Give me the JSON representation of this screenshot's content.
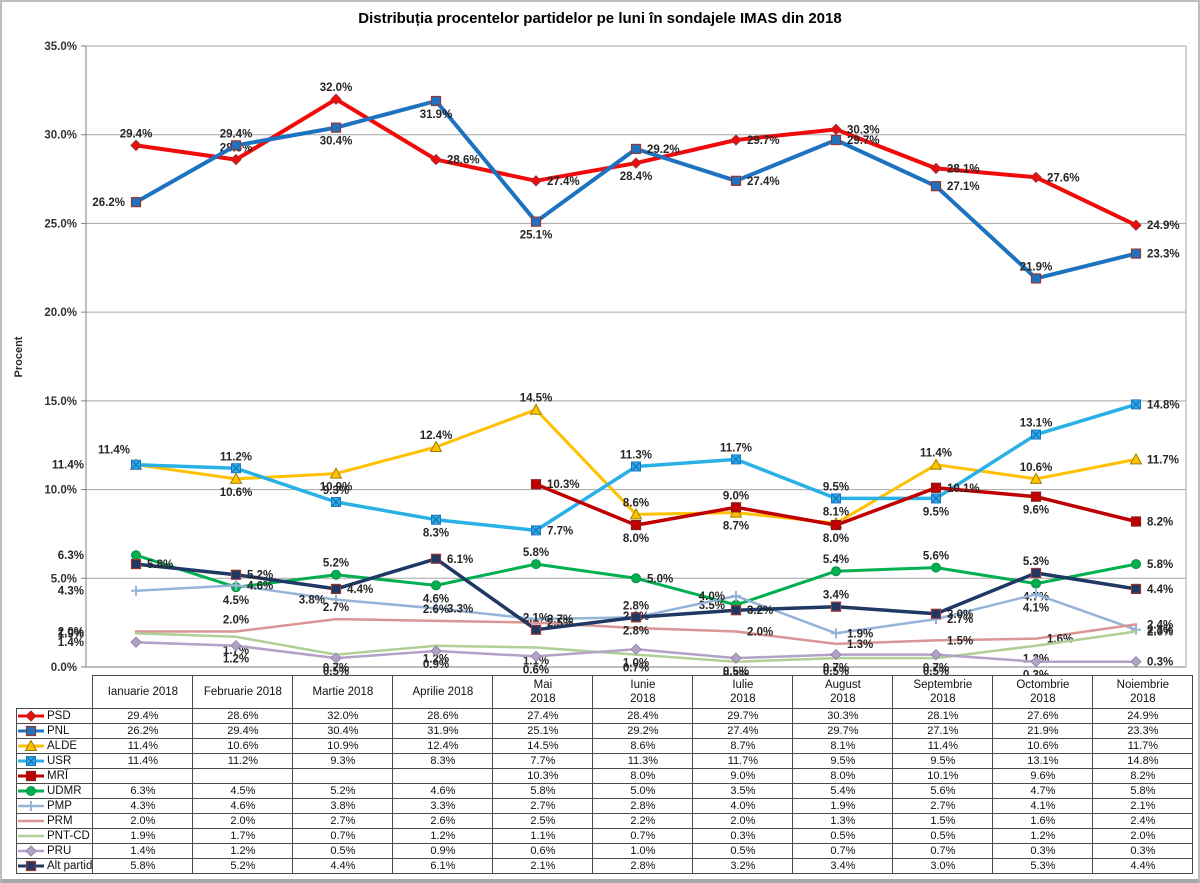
{
  "chart_data": {
    "type": "line",
    "title": "Distribuția procentelor partidelor pe luni în sondajele IMAS din 2018",
    "xlabel": "",
    "ylabel": "Procent",
    "ylim": [
      0,
      35
    ],
    "ytick_step": 5,
    "ytick_labels": [
      "0.0%",
      "5.0%",
      "10.0%",
      "15.0%",
      "20.0%",
      "25.0%",
      "30.0%",
      "35.0%"
    ],
    "grid": "horizontal-only",
    "legend_position": "table-left-column",
    "value_suffix": "%",
    "categories": [
      "Ianuarie 2018",
      "Februarie 2018",
      "Martie 2018",
      "Aprilie 2018",
      "Mai 2018",
      "Iunie 2018",
      "Iulie 2018",
      "August 2018",
      "Septembrie 2018",
      "Octombrie 2018",
      "Noiembrie 2018"
    ],
    "categories_display": [
      "Ianuarie 2018",
      "Februarie 2018",
      "Martie 2018",
      "Aprilie 2018",
      "Mai\n2018",
      "Iunie\n2018",
      "Iulie\n2018",
      "August\n2018",
      "Septembrie\n2018",
      "Octombrie\n2018",
      "Noiembrie\n2018"
    ],
    "series": [
      {
        "name": "PSD",
        "color": "#f00a0a",
        "marker": "diamond",
        "values": [
          29.4,
          28.6,
          32.0,
          28.6,
          27.4,
          28.4,
          29.7,
          30.3,
          28.1,
          27.6,
          24.9
        ]
      },
      {
        "name": "PNL",
        "color": "#1d73c0",
        "marker": "square",
        "values": [
          26.2,
          29.4,
          30.4,
          31.9,
          25.1,
          29.2,
          27.4,
          29.7,
          27.1,
          21.9,
          23.3
        ]
      },
      {
        "name": "ALDE",
        "color": "#ffc000",
        "marker": "triangle",
        "values": [
          11.4,
          10.6,
          10.9,
          12.4,
          14.5,
          8.6,
          8.7,
          8.1,
          11.4,
          10.6,
          11.7
        ]
      },
      {
        "name": "USR",
        "color": "#29b1e6",
        "marker": "xsquare",
        "values": [
          11.4,
          11.2,
          9.3,
          8.3,
          7.7,
          11.3,
          11.7,
          9.5,
          9.5,
          13.1,
          14.8
        ]
      },
      {
        "name": "MRÎ",
        "color": "#c00000",
        "marker": "square",
        "values": [
          null,
          null,
          null,
          null,
          10.3,
          8.0,
          9.0,
          8.0,
          10.1,
          9.6,
          8.2
        ]
      },
      {
        "name": "UDMR",
        "color": "#00b050",
        "marker": "circle",
        "values": [
          6.3,
          4.5,
          5.2,
          4.6,
          5.8,
          5.0,
          3.5,
          5.4,
          5.6,
          4.7,
          5.8
        ]
      },
      {
        "name": "PMP",
        "color": "#95b3d7",
        "marker": "plus",
        "values": [
          4.3,
          4.6,
          3.8,
          3.3,
          2.7,
          2.8,
          4.0,
          1.9,
          2.7,
          4.1,
          2.1
        ]
      },
      {
        "name": "PRM",
        "color": "#d99694",
        "marker": "none",
        "values": [
          2.0,
          2.0,
          2.7,
          2.6,
          2.5,
          2.2,
          2.0,
          1.3,
          1.5,
          1.6,
          2.4
        ]
      },
      {
        "name": "PNT-CD",
        "color": "#aecf96",
        "marker": "none",
        "values": [
          1.9,
          1.7,
          0.7,
          1.2,
          1.1,
          0.7,
          0.3,
          0.5,
          0.5,
          1.2,
          2.0
        ]
      },
      {
        "name": "PRU",
        "color": "#b3a2c7",
        "marker": "diamond",
        "values": [
          1.4,
          1.2,
          0.5,
          0.9,
          0.6,
          1.0,
          0.5,
          0.7,
          0.7,
          0.3,
          0.3
        ]
      },
      {
        "name": "Alt partid",
        "color": "#1f3864",
        "marker": "square",
        "values": [
          5.8,
          5.2,
          4.4,
          6.1,
          2.1,
          2.8,
          3.2,
          3.4,
          3.0,
          5.3,
          4.4
        ]
      }
    ]
  }
}
